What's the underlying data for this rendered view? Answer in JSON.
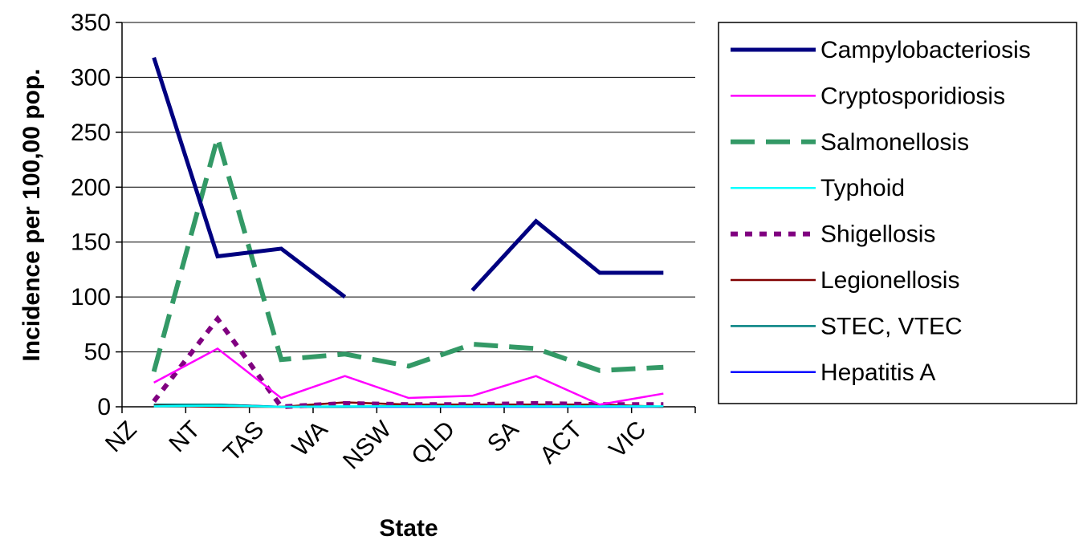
{
  "chart_data": {
    "type": "line",
    "title": "",
    "xlabel": "State",
    "ylabel": "Incidence per 100,00 pop.",
    "categories": [
      "NZ",
      "NT",
      "TAS",
      "WA",
      "NSW",
      "QLD",
      "SA",
      "ACT",
      "VIC"
    ],
    "ylim": [
      0,
      350
    ],
    "yticks": [
      0,
      50,
      100,
      150,
      200,
      250,
      300,
      350
    ],
    "grid": "horizontal",
    "legend_position": "right",
    "series": [
      {
        "name": "Campylobacteriosis",
        "color": "#000080",
        "style": "solid-thick",
        "values": [
          318,
          137,
          144,
          100,
          null,
          106,
          169,
          122,
          122
        ]
      },
      {
        "name": "Cryptosporidiosis",
        "color": "#ff00ff",
        "style": "solid",
        "values": [
          22,
          53,
          8,
          28,
          8,
          10,
          28,
          2,
          12
        ]
      },
      {
        "name": "Salmonellosis",
        "color": "#339966",
        "style": "dashed",
        "values": [
          32,
          245,
          43,
          48,
          37,
          57,
          53,
          33,
          36
        ]
      },
      {
        "name": "Typhoid",
        "color": "#00ffff",
        "style": "solid",
        "values": [
          0.5,
          1,
          0,
          0.5,
          0.5,
          0.5,
          0.5,
          0.5,
          0.5
        ]
      },
      {
        "name": "Shigellosis",
        "color": "#800080",
        "style": "dotted",
        "values": [
          5,
          80,
          0,
          3,
          2,
          2,
          3,
          2,
          2
        ]
      },
      {
        "name": "Legionellosis",
        "color": "#800000",
        "style": "solid",
        "values": [
          1,
          0,
          0,
          4,
          2,
          2,
          2,
          2,
          0
        ]
      },
      {
        "name": "STEC, VTEC",
        "color": "#008080",
        "style": "solid",
        "values": [
          2,
          2,
          0,
          0,
          1,
          1,
          1,
          1,
          0
        ]
      },
      {
        "name": "Hepatitis A",
        "color": "#0000ff",
        "style": "solid",
        "values": [
          1,
          2,
          0,
          0,
          0,
          0,
          0,
          0,
          0
        ]
      }
    ]
  }
}
